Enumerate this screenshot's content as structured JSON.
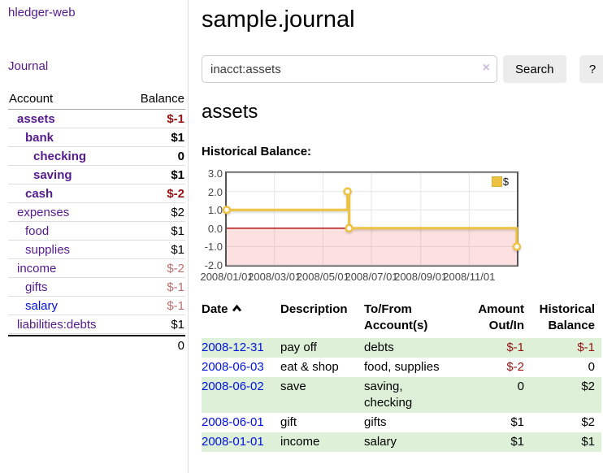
{
  "sidebar": {
    "app_title": "hledger-web",
    "journal_link": "Journal",
    "table": {
      "account_header": "Account",
      "balance_header": "Balance",
      "rows": [
        {
          "name": "assets",
          "balance": "$-1"
        },
        {
          "name": "bank",
          "balance": "$1"
        },
        {
          "name": "checking",
          "balance": "0"
        },
        {
          "name": "saving",
          "balance": "$1"
        },
        {
          "name": "cash",
          "balance": "$-2"
        },
        {
          "name": "expenses",
          "balance": "$2"
        },
        {
          "name": "food",
          "balance": "$1"
        },
        {
          "name": "supplies",
          "balance": "$1"
        },
        {
          "name": "income",
          "balance": "$-2"
        },
        {
          "name": "gifts",
          "balance": "$-1"
        },
        {
          "name": "salary",
          "balance": "$-1"
        },
        {
          "name": "liabilities:debts",
          "balance": "$1"
        }
      ],
      "total": "0"
    }
  },
  "main": {
    "page_title": "sample.journal",
    "search": {
      "value": "inacct:assets",
      "clear_icon": "×",
      "search_button": "Search",
      "help_button": "?"
    },
    "section_title": "assets",
    "chart_label": "Historical Balance:"
  },
  "chart_data": {
    "type": "line",
    "step": true,
    "title": "Historical Balance",
    "series": [
      {
        "name": "$",
        "color": "#edc240",
        "points": [
          [
            "2008-01-01",
            1
          ],
          [
            "2008-06-01",
            2
          ],
          [
            "2008-06-03",
            0
          ],
          [
            "2008-12-31",
            -1
          ]
        ]
      }
    ],
    "x_range": [
      "2008-01-01",
      "2008-12-31"
    ],
    "ylim": [
      -2,
      3
    ],
    "y_ticks": [
      "3.0",
      "2.0",
      "1.0",
      "0.0",
      "-1.0",
      "-2.0"
    ],
    "x_ticks": [
      "2008/01/01",
      "2008/03/01",
      "2008/05/01",
      "2008/07/01",
      "2008/09/01",
      "2008/11/01"
    ],
    "legend": {
      "label": "$",
      "position": "top-right"
    },
    "grid": true,
    "negative_region_highlighted": true,
    "zero_line_color": "#a80000"
  },
  "register": {
    "headers": {
      "date": "Date",
      "sort_icon": "chevron-up",
      "description": "Description",
      "tofrom_l1": "To/From",
      "tofrom_l2": "Account(s)",
      "amount_l1": "Amount",
      "amount_l2": "Out/In",
      "hist_l1": "Historical",
      "hist_l2": "Balance"
    },
    "rows": [
      {
        "date": "2008-12-31",
        "description": "pay off",
        "accounts": "debts",
        "amount": "$-1",
        "balance": "$-1"
      },
      {
        "date": "2008-06-03",
        "description": "eat & shop",
        "accounts": "food, supplies",
        "amount": "$-2",
        "balance": "0"
      },
      {
        "date": "2008-06-02",
        "description": "save",
        "accounts": "saving, checking",
        "amount": "0",
        "balance": "$2"
      },
      {
        "date": "2008-06-01",
        "description": "gift",
        "accounts": "gifts",
        "amount": "$1",
        "balance": "$2"
      },
      {
        "date": "2008-01-01",
        "description": "income",
        "accounts": "salary",
        "amount": "$1",
        "balance": "$1"
      }
    ]
  }
}
